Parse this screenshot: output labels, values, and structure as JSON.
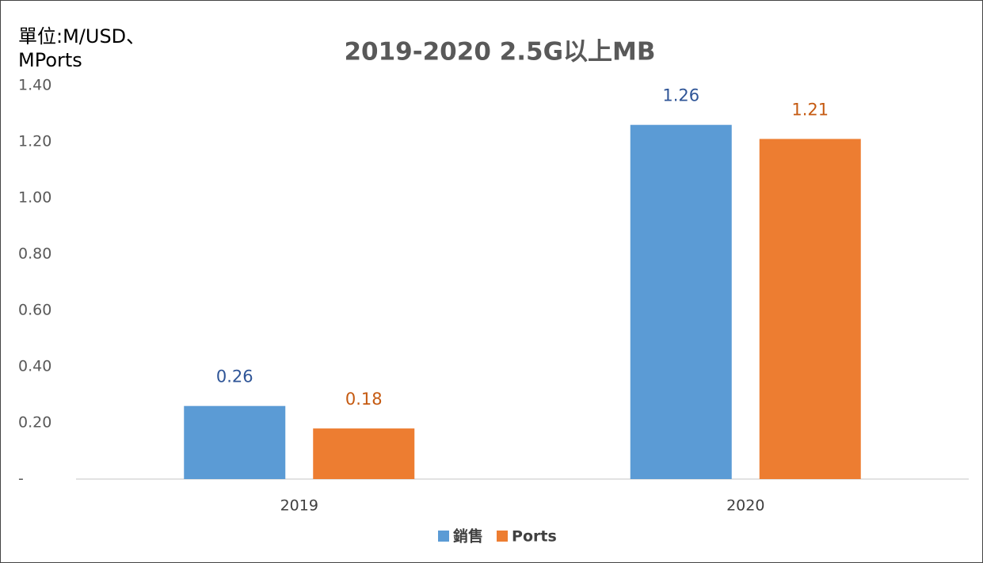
{
  "chart_data": {
    "type": "bar",
    "title": "2019-2020 2.5G以上MB",
    "y_label": "單位:M/USD、\nMPorts",
    "categories": [
      "2019",
      "2020"
    ],
    "series": [
      {
        "name": "銷售",
        "color": "#5b9bd5",
        "label_color": "#2f5597",
        "values": [
          0.26,
          1.26
        ]
      },
      {
        "name": "Ports",
        "color": "#ed7d31",
        "label_color": "#c55a11",
        "values": [
          0.18,
          1.21
        ]
      }
    ],
    "ylim": [
      0,
      1.4
    ],
    "yticks": [
      {
        "value": 0,
        "label": "-"
      },
      {
        "value": 0.2,
        "label": "0.20"
      },
      {
        "value": 0.4,
        "label": "0.40"
      },
      {
        "value": 0.6,
        "label": "0.60"
      },
      {
        "value": 0.8,
        "label": "0.80"
      },
      {
        "value": 1.0,
        "label": "1.00"
      },
      {
        "value": 1.2,
        "label": "1.20"
      },
      {
        "value": 1.4,
        "label": "1.40"
      }
    ],
    "grid": false,
    "legend": "bottom"
  }
}
